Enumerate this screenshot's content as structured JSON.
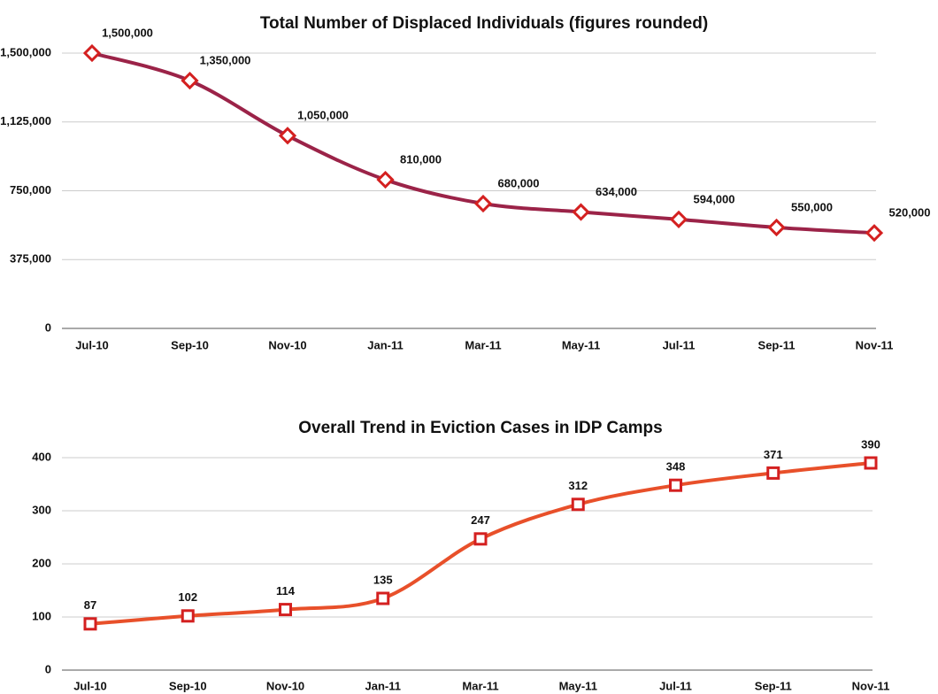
{
  "chart_data": [
    {
      "type": "line",
      "title": "Total Number of Displaced Individuals (figures rounded)",
      "categories": [
        "Jul-10",
        "Sep-10",
        "Nov-10",
        "Jan-11",
        "Mar-11",
        "May-11",
        "Jul-11",
        "Sep-11",
        "Nov-11"
      ],
      "values": [
        1500000,
        1350000,
        1050000,
        810000,
        680000,
        634000,
        594000,
        550000,
        520000
      ],
      "value_labels": [
        "1,500,000",
        "1,350,000",
        "1,050,000",
        "810,000",
        "680,000",
        "634,000",
        "594,000",
        "550,000",
        "520,000"
      ],
      "color": "#9b2348",
      "marker": "diamond",
      "ylim": [
        0,
        1500000
      ],
      "yticks": [
        0,
        {
          "value": 375000,
          "label": "375,000"
        },
        {
          "value": 750000,
          "label": "750,000"
        },
        {
          "value": 1125000,
          "label": "1,125,000"
        },
        {
          "value": 1500000,
          "label": "1,500,000"
        }
      ],
      "grid": true
    },
    {
      "type": "line",
      "title": "Overall Trend in Eviction Cases in IDP Camps",
      "categories": [
        "Jul-10",
        "Sep-10",
        "Nov-10",
        "Jan-11",
        "Mar-11",
        "May-11",
        "Jul-11",
        "Sep-11",
        "Nov-11"
      ],
      "values": [
        87,
        102,
        114,
        135,
        247,
        312,
        348,
        371,
        390
      ],
      "color": "#e8502a",
      "marker": "square",
      "ylim": [
        0,
        400
      ],
      "yticks": [
        0,
        100,
        200,
        300,
        400
      ],
      "grid": true
    }
  ]
}
